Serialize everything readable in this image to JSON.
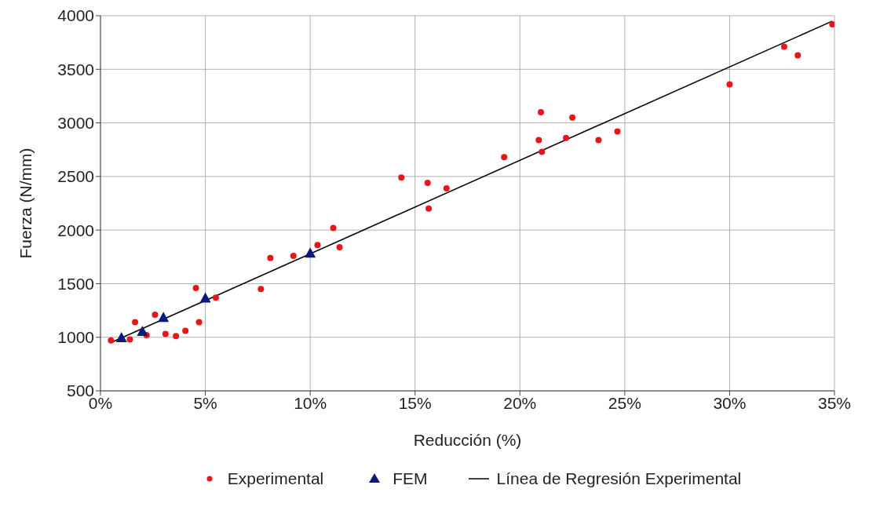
{
  "chart_data": {
    "type": "scatter",
    "xlabel": "Reducción (%)",
    "ylabel": "Fuerza (N/mm)",
    "xlim": [
      0,
      35
    ],
    "xticks": [
      {
        "value": 0,
        "label": "0%"
      },
      {
        "value": 5,
        "label": "5%"
      },
      {
        "value": 10,
        "label": "10%"
      },
      {
        "value": 15,
        "label": "15%"
      },
      {
        "value": 20,
        "label": "20%"
      },
      {
        "value": 25,
        "label": "25%"
      },
      {
        "value": 30,
        "label": "30%"
      },
      {
        "value": 35,
        "label": "35%"
      }
    ],
    "ylim": [
      500,
      4000
    ],
    "yticks": [
      500,
      1000,
      1500,
      2000,
      2500,
      3000,
      3500,
      4000
    ],
    "grid": true,
    "legend": "bottom",
    "series": [
      {
        "name": "Experimental",
        "marker": "circle",
        "color": "#e8161b",
        "x": [
          0.5,
          1.4,
          1.65,
          2.2,
          2.6,
          3.1,
          3.6,
          4.05,
          4.55,
          4.7,
          5.5,
          7.65,
          8.1,
          9.2,
          10.35,
          11.1,
          11.4,
          14.35,
          15.6,
          15.65,
          16.5,
          19.25,
          21.0,
          20.9,
          21.05,
          22.2,
          22.5,
          23.75,
          24.65,
          30.0,
          32.6,
          33.25,
          34.9
        ],
        "values": [
          970,
          980,
          1140,
          1020,
          1210,
          1030,
          1010,
          1060,
          1460,
          1140,
          1370,
          1450,
          1740,
          1760,
          1860,
          2020,
          1840,
          2490,
          2440,
          2200,
          2390,
          2680,
          3100,
          2840,
          2730,
          2860,
          3050,
          2840,
          2920,
          3360,
          3710,
          3630,
          3920
        ]
      },
      {
        "name": "FEM",
        "marker": "triangle",
        "color": "#0a1a7a",
        "x": [
          1,
          2,
          3,
          5,
          10
        ],
        "values": [
          990,
          1050,
          1180,
          1360,
          1780
        ]
      },
      {
        "name": "Línea de Regresión Experimental",
        "type": "line",
        "marker": "none",
        "line_style": "solid",
        "color": "#000000",
        "x": [
          0.5,
          34.9
        ],
        "values": [
          950,
          3950
        ]
      }
    ]
  }
}
